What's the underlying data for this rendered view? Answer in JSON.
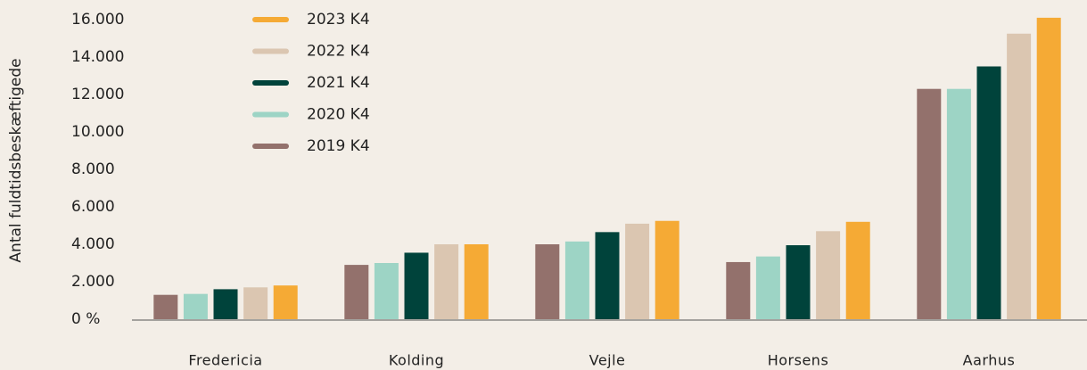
{
  "chart_data": {
    "type": "bar",
    "y_label": "Antal fuldtidsbeskæftigede",
    "categories": [
      "Fredericia",
      "Kolding",
      "Vejle",
      "Horsens",
      "Aarhus"
    ],
    "series": [
      {
        "name": "2019 K4",
        "color": "#93716c",
        "values": [
          1300,
          2900,
          4000,
          3050,
          12300
        ]
      },
      {
        "name": "2020 K4",
        "color": "#9dd4c5",
        "values": [
          1350,
          3000,
          4150,
          3350,
          12300
        ]
      },
      {
        "name": "2021 K4",
        "color": "#00433b",
        "values": [
          1600,
          3550,
          4650,
          3950,
          13500
        ]
      },
      {
        "name": "2022 K4",
        "color": "#dbc6b1",
        "values": [
          1700,
          4000,
          5100,
          4700,
          15250
        ]
      },
      {
        "name": "2023 K4",
        "color": "#f5aa35",
        "values": [
          1800,
          4000,
          5250,
          5200,
          16100
        ]
      }
    ],
    "ylim": [
      0,
      16000
    ],
    "yticks": [
      {
        "value": 0,
        "label": "0 %"
      },
      {
        "value": 2000,
        "label": "2.000"
      },
      {
        "value": 4000,
        "label": "4.000"
      },
      {
        "value": 6000,
        "label": "6.000"
      },
      {
        "value": 8000,
        "label": "8.000"
      },
      {
        "value": 10000,
        "label": "10.000"
      },
      {
        "value": 12000,
        "label": "12.000"
      },
      {
        "value": 14000,
        "label": "14.000"
      },
      {
        "value": 16000,
        "label": "16.000"
      }
    ],
    "legend_order": "reversed"
  }
}
